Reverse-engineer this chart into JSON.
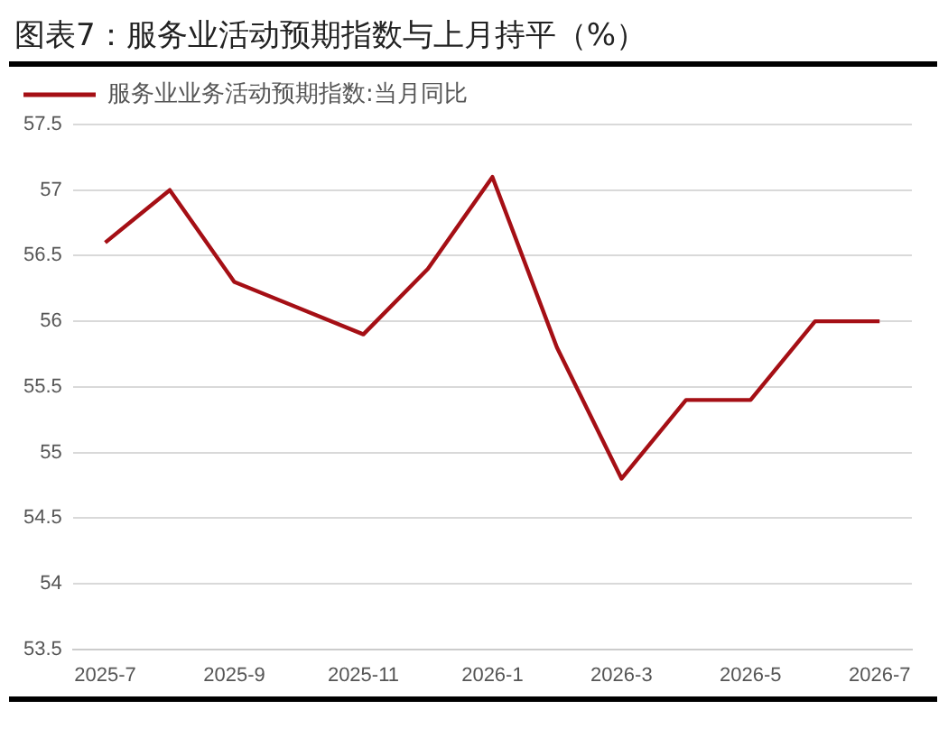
{
  "chart_data": {
    "type": "line",
    "title": "图表7：服务业活动预期指数与上月持平（%）",
    "categories": [
      "2025-7",
      null,
      "2025-9",
      null,
      "2025-11",
      null,
      "2026-1",
      null,
      "2026-3",
      null,
      "2026-5",
      null,
      "2026-7"
    ],
    "series": [
      {
        "name": "服务业业务活动预期指数:当月同比",
        "color": "#a50f15",
        "values": [
          56.6,
          57.0,
          56.3,
          56.1,
          55.9,
          56.4,
          57.1,
          55.8,
          54.8,
          55.4,
          55.4,
          56.0,
          56.0
        ]
      }
    ],
    "ylim": [
      53.5,
      57.5
    ],
    "yticks": [
      53.5,
      54,
      54.5,
      55,
      55.5,
      56,
      56.5,
      57,
      57.5
    ],
    "grid": "y",
    "legend": "top left",
    "marker": "none",
    "line_style": "solid"
  }
}
